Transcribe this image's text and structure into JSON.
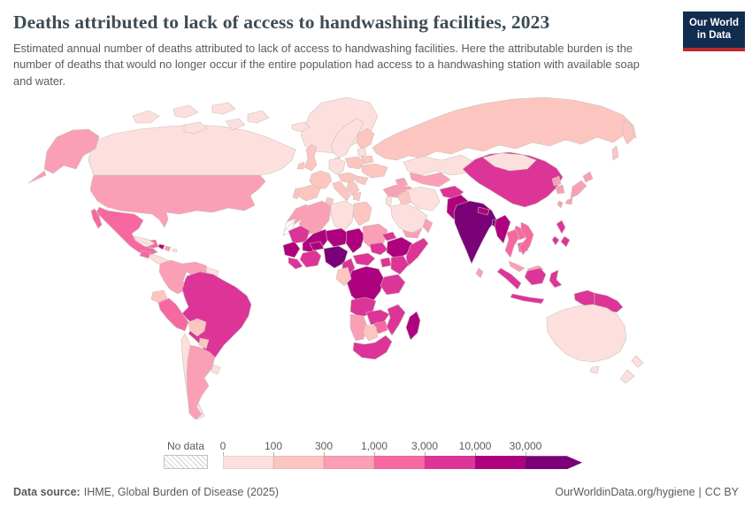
{
  "header": {
    "title": "Deaths attributed to lack of access to handwashing facilities, 2023",
    "subtitle": "Estimated annual number of deaths attributed to lack of access to handwashing facilities. Here the attributable burden is the number of deaths that would no longer occur if the entire population had access to a handwashing station with available soap and water.",
    "logo": {
      "line1": "Our World",
      "line2": "in Data"
    }
  },
  "footer": {
    "source_label": "Data source:",
    "source_text": "IHME, Global Burden of Disease (2025)",
    "url": "OurWorldinData.org/hygiene",
    "separator": "|",
    "license": "CC BY"
  },
  "chart_data": {
    "type": "choropleth",
    "title": "Deaths attributed to lack of access to handwashing facilities, 2023",
    "year": "2023",
    "unit": "deaths",
    "projection": "world",
    "color_scale": {
      "no_data_label": "No data",
      "tick_labels": [
        "0",
        "100",
        "300",
        "1,000",
        "3,000",
        "10,000",
        "30,000"
      ],
      "bucket_colors": {
        "b1": "#fde0dd",
        "b2": "#fcc5c0",
        "b3": "#fa9fb5",
        "b4": "#f768a1",
        "b5": "#dd3497",
        "b6": "#ae017e",
        "b7": "#7a0177"
      },
      "bucket_ranges": {
        "b1": "0–100",
        "b2": "100–300",
        "b3": "300–1,000",
        "b4": "1,000–3,000",
        "b5": "3,000–10,000",
        "b6": "10,000–30,000",
        "b7": "30,000+"
      }
    },
    "regions": {
      "russia": "b2",
      "russia-kamchatka": "b2",
      "sakhalin": "b2",
      "canada": "b1",
      "canada-arctic": "b1",
      "greenland": "b1",
      "iceland": "b1",
      "alaska": "b3",
      "usa": "b3",
      "mexico": "b4",
      "guatemala": "b4",
      "central-america": "b1",
      "cuba": "b1",
      "haiti": "b6",
      "dominican-republic": "b3",
      "puerto-rico": "b1",
      "colombia": "b3",
      "venezuela": "b3",
      "guyana": "b1",
      "ecuador": "b2",
      "peru": "b4",
      "brazil": "b5",
      "bolivia": "b2",
      "paraguay": "b2",
      "chile": "b1",
      "argentina": "b3",
      "uruguay": "b1",
      "norway-sweden": "b1",
      "finland": "b2",
      "denmark": "b1",
      "uk": "b2",
      "ireland": "b2",
      "france": "b2",
      "spain": "b2",
      "portugal": "b2",
      "germany": "b1",
      "central-europe": "b2",
      "italy": "b2",
      "poland": "b2",
      "baltics": "b1",
      "belarus": "b2",
      "ukraine": "b2",
      "romania": "b2",
      "balkans": "b2",
      "greece": "b2",
      "turkey": "b3",
      "kazakhstan": "b1",
      "mongolia": "b1",
      "central-asia": "b3",
      "caucasus": "b3",
      "iran": "b1",
      "iraq": "b2",
      "syria": "b3",
      "israel-jordan": "b1",
      "saudi-arabia": "b1",
      "yemen": "b3",
      "oman": "b3",
      "morocco": "b3",
      "western-sahara": "no_data",
      "algeria": "b3",
      "tunisia": "b2",
      "libya": "b1",
      "egypt": "b2",
      "mauritania": "b5",
      "mali": "b6",
      "niger": "b6",
      "chad": "b6",
      "sudan": "b3",
      "eritrea": "b5",
      "senegal-guinea": "b6",
      "sierra-leone-liberia": "b5",
      "ivory-coast-ghana": "b5",
      "burkina-faso": "b6",
      "nigeria": "b7",
      "cameroon": "b5",
      "central-african-republic": "b5",
      "south-sudan": "b5",
      "ethiopia": "b6",
      "somalia": "b5",
      "uganda": "b5",
      "kenya": "b5",
      "drc": "b6",
      "congo-gabon": "b2",
      "tanzania": "b5",
      "angola": "b5",
      "zambia": "b5",
      "mozambique": "b5",
      "zimbabwe": "b4",
      "namibia": "b3",
      "botswana": "b2",
      "south-africa": "b5",
      "madagascar": "b6",
      "afghanistan": "b5",
      "pakistan": "b6",
      "india": "b7",
      "nepal": "b6",
      "bangladesh": "b7",
      "sri-lanka": "b3",
      "china": "b5",
      "taiwan": "b3",
      "north-korea": "b3",
      "south-korea": "b3",
      "japan": "b3",
      "myanmar": "b6",
      "thailand": "b4",
      "laos": "b4",
      "vietnam": "b4",
      "cambodia": "b4",
      "malaysia": "b3",
      "indonesia": "b5",
      "philippines": "b5",
      "papua-new-guinea": "b5",
      "australia": "b1",
      "new-zealand": "b1"
    }
  }
}
